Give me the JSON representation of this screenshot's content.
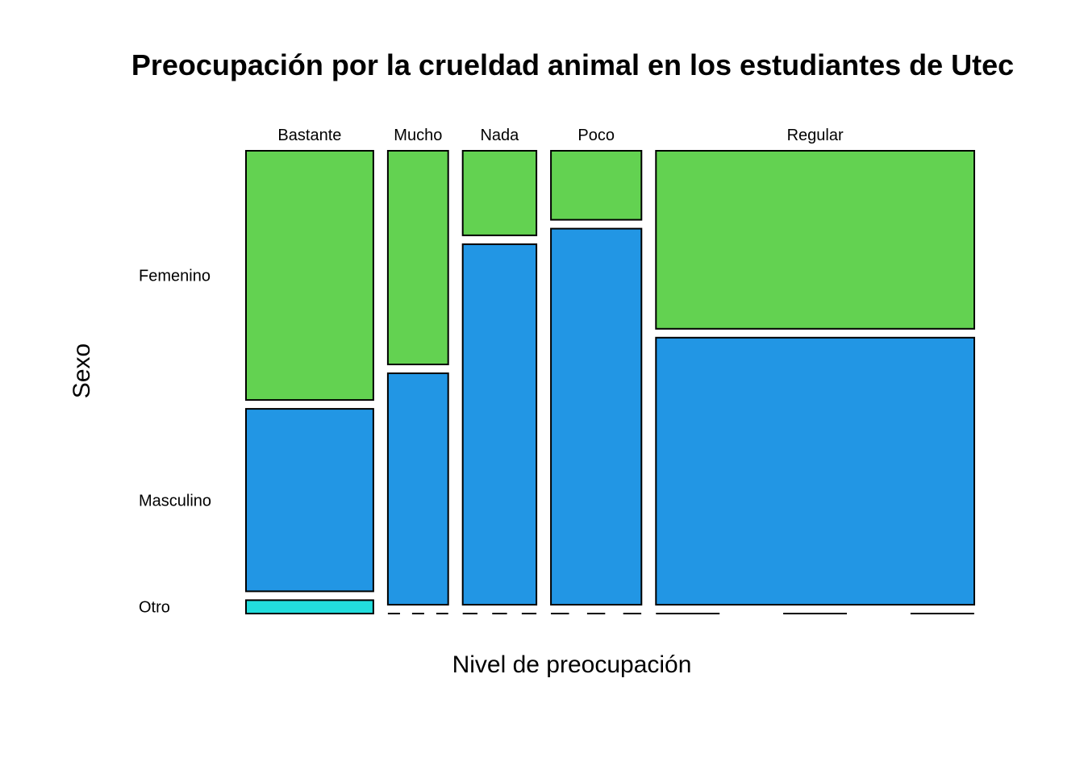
{
  "chart_data": {
    "type": "mosaic",
    "title": "Preocupación por la crueldad animal en los estudiantes de Utec",
    "xlabel": "Nivel de preocupación",
    "ylabel": "Sexo",
    "x_categories": [
      "Bastante",
      "Mucho",
      "Nada",
      "Poco",
      "Regular"
    ],
    "x_proportions": [
      0.19,
      0.09,
      0.11,
      0.135,
      0.475
    ],
    "y_categories": [
      "Femenino",
      "Masculino",
      "Otro"
    ],
    "colors": {
      "Femenino": "#63D251",
      "Masculino": "#2296E4",
      "Otro": "#22DDDD"
    },
    "proportions_by_x": [
      {
        "x": "Bastante",
        "values": {
          "Femenino": 0.56,
          "Masculino": 0.41,
          "Otro": 0.03
        }
      },
      {
        "x": "Mucho",
        "values": {
          "Femenino": 0.48,
          "Masculino": 0.52,
          "Otro": 0.0
        }
      },
      {
        "x": "Nada",
        "values": {
          "Femenino": 0.19,
          "Masculino": 0.81,
          "Otro": 0.0
        }
      },
      {
        "x": "Poco",
        "values": {
          "Femenino": 0.155,
          "Masculino": 0.845,
          "Otro": 0.0
        }
      },
      {
        "x": "Regular",
        "values": {
          "Femenino": 0.4,
          "Masculino": 0.6,
          "Otro": 0.0
        }
      }
    ]
  }
}
